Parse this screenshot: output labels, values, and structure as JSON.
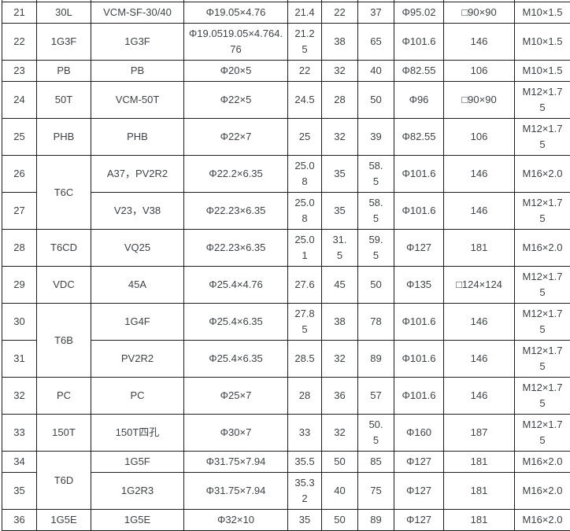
{
  "table": {
    "description_colors": {
      "border": "#1c1c1c",
      "text": "#3f4347",
      "background": "#ffffff"
    },
    "rows": [
      {
        "no": "21",
        "group": "30L",
        "group_rowspan": 1,
        "model": "VCM-SF-30/40",
        "seal_size": "Φ19.05×4.76",
        "v1": "21.4",
        "v2": "22",
        "v3": "37",
        "v4": "Φ95.02",
        "v5": "□90×90",
        "thread": "M10×1.5"
      },
      {
        "no": "22",
        "group": "1G3F",
        "group_rowspan": 1,
        "model": "1G3F",
        "seal_size": "Φ19.0519.05×4.764.\n76",
        "v1": "21.2\n5",
        "v2": "38",
        "v3": "65",
        "v4": "Φ101.6",
        "v5": "146",
        "thread": "M10×1.5"
      },
      {
        "no": "23",
        "group": "PB",
        "group_rowspan": 1,
        "model": "PB",
        "seal_size": "Φ20×5",
        "v1": "22",
        "v2": "32",
        "v3": "40",
        "v4": "Φ82.55",
        "v5": "106",
        "thread": "M10×1.5"
      },
      {
        "no": "24",
        "group": "50T",
        "group_rowspan": 1,
        "model": "VCM-50T",
        "seal_size": "Φ22×5",
        "v1": "24.5",
        "v2": "28",
        "v3": "50",
        "v4": "Φ96",
        "v5": "□90×90",
        "thread": "M12×1.7\n5"
      },
      {
        "no": "25",
        "group": "PHB",
        "group_rowspan": 1,
        "model": "PHB",
        "seal_size": "Φ22×7",
        "v1": "25",
        "v2": "32",
        "v3": "39",
        "v4": "Φ82.55",
        "v5": "106",
        "thread": "M12×1.7\n5"
      },
      {
        "no": "26",
        "group": "T6C",
        "group_rowspan": 2,
        "model": "A37，PV2R2",
        "seal_size": "Φ22.2×6.35",
        "v1": "25.0\n8",
        "v2": "35",
        "v3": "58.\n5",
        "v4": "Φ101.6",
        "v5": "146",
        "thread": "M16×2.0"
      },
      {
        "no": "27",
        "group": null,
        "model": "V23，V38",
        "seal_size": "Φ22.23×6.35",
        "v1": "25.0\n8",
        "v2": "35",
        "v3": "58.\n5",
        "v4": "Φ101.6",
        "v5": "146",
        "thread": "M12×1.7\n5"
      },
      {
        "no": "28",
        "group": "T6CD",
        "group_rowspan": 1,
        "model": "VQ25",
        "seal_size": "Φ22.23×6.35",
        "v1": "25.0\n1",
        "v2": "31.\n5",
        "v3": "59.\n5",
        "v4": "Φ127",
        "v5": "181",
        "thread": "M16×2.0"
      },
      {
        "no": "29",
        "group": "VDC",
        "group_rowspan": 1,
        "model": "45A",
        "seal_size": "Φ25.4×4.76",
        "v1": "27.6",
        "v2": "45",
        "v3": "50",
        "v4": "Φ135",
        "v5": "□124×124",
        "thread": "M12×1.7\n5"
      },
      {
        "no": "30",
        "group": "T6B",
        "group_rowspan": 2,
        "model": "1G4F",
        "seal_size": "Φ25.4×6.35",
        "v1": "27.8\n5",
        "v2": "38",
        "v3": "78",
        "v4": "Φ101.6",
        "v5": "146",
        "thread": "M12×1.7\n5"
      },
      {
        "no": "31",
        "group": null,
        "model": "PV2R2",
        "seal_size": "Φ25.4×6.35",
        "v1": "28.5",
        "v2": "32",
        "v3": "89",
        "v4": "Φ101.6",
        "v5": "146",
        "thread": "M12×1.7\n5"
      },
      {
        "no": "32",
        "group": "PC",
        "group_rowspan": 1,
        "model": "PC",
        "seal_size": "Φ25×7",
        "v1": "28",
        "v2": "36",
        "v3": "57",
        "v4": "Φ101.6",
        "v5": "146",
        "thread": "M12×1.7\n5"
      },
      {
        "no": "33",
        "group": "150T",
        "group_rowspan": 1,
        "model": "150T四孔",
        "seal_size": "Φ30×7",
        "v1": "33",
        "v2": "32",
        "v3": "50.\n5",
        "v4": "Φ160",
        "v5": "187",
        "thread": "M12×1.7\n5"
      },
      {
        "no": "34",
        "group": "T6D",
        "group_rowspan": 2,
        "model": "1G5F",
        "seal_size": "Φ31.75×7.94",
        "v1": "35.5",
        "v2": "50",
        "v3": "85",
        "v4": "Φ127",
        "v5": "181",
        "thread": "M16×2.0"
      },
      {
        "no": "35",
        "group": null,
        "model": "1G2R3",
        "seal_size": "Φ31.75×7.94",
        "v1": "35.3\n2",
        "v2": "40",
        "v3": "75",
        "v4": "Φ127",
        "v5": "181",
        "thread": "M16×2.0"
      },
      {
        "no": "36",
        "group": "1G5E",
        "group_rowspan": 1,
        "model": "1G5E",
        "seal_size": "Φ32×10",
        "v1": "35",
        "v2": "50",
        "v3": "89",
        "v4": "Φ127",
        "v5": "181",
        "thread": "M16×2.0"
      }
    ]
  }
}
